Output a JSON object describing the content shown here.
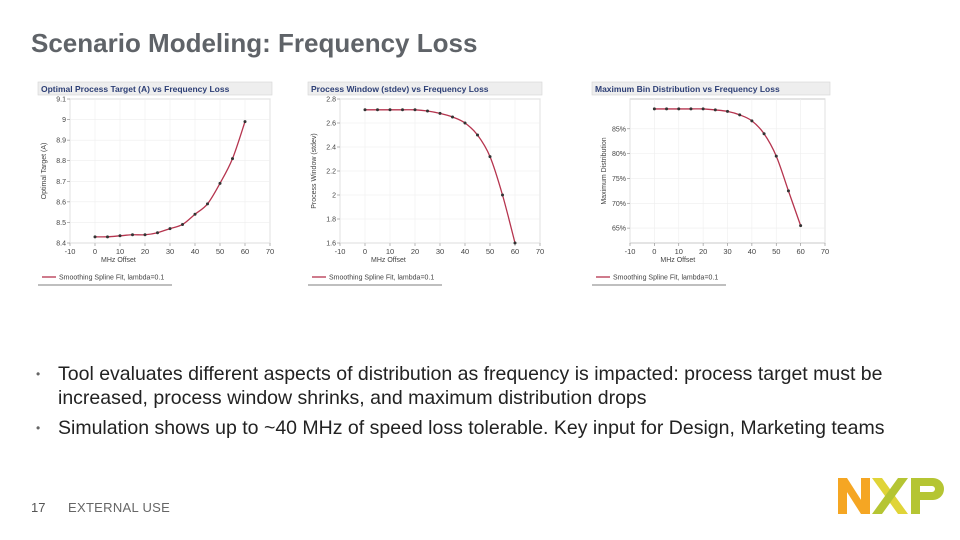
{
  "slide": {
    "title": "Scenario Modeling: Frequency Loss",
    "bullets": [
      "Tool evaluates different aspects of distribution as frequency is impacted: process target must be increased, process window shrinks, and maximum distribution drops",
      "Simulation shows up to ~40 MHz of speed loss tolerable.  Key input for Design, Marketing teams"
    ],
    "bullet_marker": "•",
    "page_number": "17",
    "footer_label": "EXTERNAL USE",
    "logo_text": "NXP",
    "colors": {
      "series": "#b5344e",
      "orange": "#f5a623",
      "yellow_green": "#b5c533",
      "gray_text": "#5f6368"
    }
  },
  "chart_data": [
    {
      "type": "line",
      "title": "Optimal Process Target (A) vs Frequency Loss",
      "xlabel": "MHz Offset",
      "ylabel": "Optimal Target (A)",
      "xlim": [
        -10,
        70
      ],
      "ylim": [
        8.4,
        9.1
      ],
      "xticks": [
        "-10",
        "0",
        "10",
        "20",
        "30",
        "40",
        "50",
        "60",
        "70"
      ],
      "yticks": [
        "8.4",
        "8.5",
        "8.6",
        "8.7",
        "8.8",
        "8.9",
        "9",
        "9.1"
      ],
      "x": [
        0,
        5,
        10,
        15,
        20,
        25,
        30,
        35,
        40,
        45,
        50,
        55,
        60
      ],
      "series": [
        {
          "name": "Smoothing Spline Fit, lambda=0.1",
          "values": [
            8.43,
            8.43,
            8.435,
            8.44,
            8.44,
            8.45,
            8.47,
            8.49,
            8.54,
            8.59,
            8.69,
            8.81,
            8.99
          ]
        }
      ],
      "legend": "bottom"
    },
    {
      "type": "line",
      "title": "Process Window (stdev) vs Frequency Loss",
      "xlabel": "MHz Offset",
      "ylabel": "Process Window (stdev)",
      "xlim": [
        -10,
        70
      ],
      "ylim": [
        1.6,
        2.8
      ],
      "xticks": [
        "-10",
        "0",
        "10",
        "20",
        "30",
        "40",
        "50",
        "60",
        "70"
      ],
      "yticks": [
        "1.6",
        "1.8",
        "2",
        "2.2",
        "2.4",
        "2.6",
        "2.8"
      ],
      "x": [
        0,
        5,
        10,
        15,
        20,
        25,
        30,
        35,
        40,
        45,
        50,
        55,
        60
      ],
      "series": [
        {
          "name": "Smoothing Spline Fit, lambda=0.1",
          "values": [
            2.71,
            2.71,
            2.71,
            2.71,
            2.71,
            2.7,
            2.68,
            2.65,
            2.6,
            2.5,
            2.32,
            2.0,
            1.6
          ]
        }
      ],
      "legend": "bottom"
    },
    {
      "type": "line",
      "title": "Maximum Bin Distribution vs Frequency Loss",
      "xlabel": "MHz Offset",
      "ylabel": "Maximum Distribution",
      "xlim": [
        -10,
        70
      ],
      "ylim": [
        62,
        91
      ],
      "xticks": [
        "-10",
        "0",
        "10",
        "20",
        "30",
        "40",
        "50",
        "60",
        "70"
      ],
      "yticks": [
        "65%",
        "70%",
        "75%",
        "80%",
        "85%"
      ],
      "ytick_values": [
        65,
        70,
        75,
        80,
        85
      ],
      "x": [
        0,
        5,
        10,
        15,
        20,
        25,
        30,
        35,
        40,
        45,
        50,
        55,
        60
      ],
      "series": [
        {
          "name": "Smoothing Spline Fit, lambda=0.1",
          "values": [
            89.0,
            89.0,
            89.0,
            89.0,
            89.0,
            88.8,
            88.5,
            87.8,
            86.6,
            84.0,
            79.5,
            72.5,
            65.5
          ]
        }
      ],
      "legend": "bottom"
    }
  ]
}
